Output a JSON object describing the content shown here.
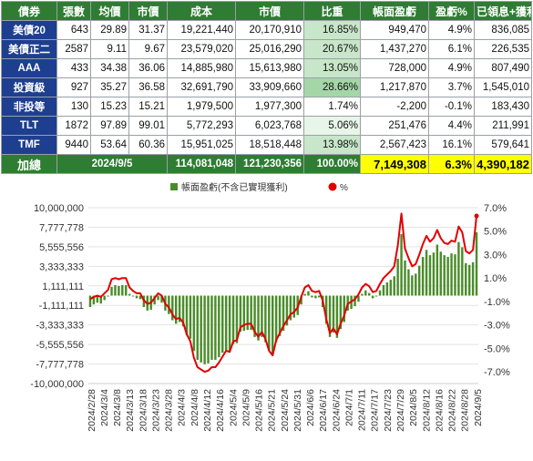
{
  "table": {
    "headers": [
      "債券",
      "張數",
      "均價",
      "市價",
      "成本",
      "市價",
      "比重",
      "帳面盈虧",
      "盈虧%",
      "已領息+獲利"
    ],
    "rows": [
      {
        "name": "美債20",
        "qty": "643",
        "avg": "29.89",
        "price": "31.37",
        "cost": "19,221,440",
        "value": "20,170,910",
        "weight": "16.85%",
        "pnl": "949,470",
        "pct": "4.9%",
        "income": "836,085"
      },
      {
        "name": "美債正二",
        "qty": "2587",
        "avg": "9.11",
        "price": "9.67",
        "cost": "23,579,020",
        "value": "25,016,290",
        "weight": "20.67%",
        "pnl": "1,437,270",
        "pct": "6.1%",
        "income": "226,535"
      },
      {
        "name": "AAA",
        "qty": "433",
        "avg": "34.38",
        "price": "36.06",
        "cost": "14,885,980",
        "value": "15,613,980",
        "weight": "13.05%",
        "pnl": "728,000",
        "pct": "4.9%",
        "income": "807,490"
      },
      {
        "name": "投資級",
        "qty": "927",
        "avg": "35.27",
        "price": "36.58",
        "cost": "32,691,790",
        "value": "33,909,660",
        "weight": "28.66%",
        "pnl": "1,217,870",
        "pct": "3.7%",
        "income": "1,545,010"
      },
      {
        "name": "非投等",
        "qty": "130",
        "avg": "15.23",
        "price": "15.21",
        "cost": "1,979,500",
        "value": "1,977,300",
        "weight": "1.74%",
        "pnl": "-2,200",
        "pct": "-0.1%",
        "income": "183,430"
      },
      {
        "name": "TLT",
        "qty": "1872",
        "avg": "97.89",
        "price": "99.01",
        "cost": "5,772,293",
        "value": "6,023,768",
        "weight": "5.06%",
        "pnl": "251,476",
        "pct": "4.4%",
        "income": "211,991"
      },
      {
        "name": "TMF",
        "qty": "9440",
        "avg": "53.64",
        "price": "60.36",
        "cost": "15,951,025",
        "value": "18,518,448",
        "weight": "13.98%",
        "pnl": "2,567,423",
        "pct": "16.1%",
        "income": "579,641"
      }
    ],
    "total": {
      "label": "加總",
      "date": "2024/9/5",
      "cost": "114,081,048",
      "value": "121,230,356",
      "weight": "100.00%",
      "pnl": "7,149,308",
      "pct": "6.3%",
      "income": "4,390,182"
    }
  },
  "chart_data": {
    "type": "bar",
    "legend": {
      "position": "top",
      "bar_label": "帳面盈虧(不含已實現獲利)",
      "line_label": "%"
    },
    "colors": {
      "bar": "#4a8c2a",
      "line": "#e00000"
    },
    "y_left": {
      "min": -10000000,
      "max": 10000000,
      "ticks": [
        "10,000,000",
        "7,777,778",
        "5,555,556",
        "3,333,333",
        "1,111,111",
        "-1,111,111",
        "-3,333,333",
        "-5,555,556",
        "-7,777,778",
        "-10,000,000"
      ]
    },
    "y_right": {
      "min": -8.0,
      "max": 7.0,
      "ticks": [
        "7.0%",
        "5.0%",
        "3.0%",
        "1.0%",
        "-1.0%",
        "-3.0%",
        "-5.0%",
        "-7.0%"
      ]
    },
    "x_labels": [
      "2024/2/28",
      "2024/3/4",
      "2024/3/8",
      "2024/3/13",
      "2024/3/18",
      "2024/3/23",
      "2024/3/28",
      "2024/4/3",
      "2024/4/8",
      "2024/4/12",
      "2024/4/16",
      "2024/5/4",
      "2024/5/9",
      "2024/5/16",
      "2024/5/21",
      "2024/5/24",
      "2024/5/31",
      "2024/6/6",
      "2024/6/17",
      "2024/6/24",
      "2024/7/1",
      "2024/7/11",
      "2024/7/17",
      "2024/7/23",
      "2024/7/29",
      "2024/8/5",
      "2024/8/12",
      "2024/8/16",
      "2024/8/22",
      "2024/8/28",
      "2024/9/5"
    ],
    "series": [
      {
        "name": "帳面盈虧(不含已實現獲利)",
        "type": "bar",
        "values": [
          -1300000,
          -1000000,
          -800000,
          -900000,
          -500000,
          -100000,
          1000000,
          1200000,
          1100000,
          1200000,
          1200000,
          200000,
          -100000,
          -300000,
          -400000,
          -1300000,
          -1700000,
          -1600000,
          -1000000,
          -500000,
          -800000,
          -1700000,
          -2100000,
          -2800000,
          -3200000,
          -3000000,
          -3500000,
          -4500000,
          -4900000,
          -6300000,
          -7300000,
          -7600000,
          -7800000,
          -7700000,
          -7300000,
          -7300000,
          -7000000,
          -6500000,
          -6200000,
          -6300000,
          -5500000,
          -5400000,
          -4100000,
          -4000000,
          -3900000,
          -3900000,
          -4700000,
          -5100000,
          -4700000,
          -5300000,
          -6200000,
          -6700000,
          -5300000,
          -4600000,
          -4000000,
          -3400000,
          -2800000,
          -2500000,
          -2200000,
          -1000000,
          200000,
          500000,
          -200000,
          -300000,
          -200000,
          -1300000,
          -3200000,
          -4700000,
          -4200000,
          -4800000,
          -3800000,
          -3000000,
          -1700000,
          -1500000,
          -1200000,
          -700000,
          200000,
          600000,
          300000,
          -300000,
          -100000,
          600000,
          1200000,
          1500000,
          1800000,
          2200000,
          4200000,
          7000000,
          4000000,
          3000000,
          2300000,
          2500000,
          3400000,
          4400000,
          5200000,
          4600000,
          4900000,
          5800000,
          5000000,
          4600000,
          4400000,
          4800000,
          4700000,
          6100000,
          5500000,
          3700000,
          3500000,
          3800000,
          7200000
        ]
      },
      {
        "name": "%",
        "type": "line",
        "values": [
          -0.8,
          -0.6,
          -0.5,
          -0.6,
          -0.3,
          0.0,
          0.9,
          1.0,
          0.9,
          1.0,
          1.0,
          0.2,
          -0.1,
          -0.3,
          -0.3,
          -0.9,
          -1.2,
          -1.1,
          -0.7,
          -0.3,
          -0.5,
          -1.2,
          -1.5,
          -2.1,
          -2.5,
          -2.4,
          -2.8,
          -3.8,
          -4.4,
          -5.8,
          -6.6,
          -6.8,
          -7.0,
          -6.9,
          -6.6,
          -6.6,
          -6.2,
          -5.7,
          -5.2,
          -5.3,
          -4.4,
          -4.3,
          -3.2,
          -3.0,
          -2.9,
          -2.9,
          -3.6,
          -4.0,
          -3.6,
          -4.2,
          -5.2,
          -5.6,
          -4.3,
          -3.7,
          -3.1,
          -2.6,
          -2.1,
          -1.9,
          -1.5,
          -0.6,
          0.2,
          0.4,
          -0.1,
          -0.2,
          -0.1,
          -0.9,
          -2.5,
          -3.7,
          -3.3,
          -3.8,
          -2.9,
          -2.2,
          -1.2,
          -1.0,
          -0.8,
          -0.4,
          0.2,
          0.5,
          0.3,
          -0.2,
          -0.1,
          0.5,
          1.0,
          1.3,
          1.6,
          2.0,
          3.8,
          6.5,
          3.5,
          2.7,
          2.0,
          2.2,
          3.0,
          3.9,
          4.6,
          4.1,
          4.4,
          5.1,
          4.4,
          4.0,
          3.9,
          4.2,
          4.1,
          5.4,
          4.9,
          3.3,
          3.1,
          3.4,
          6.3
        ]
      }
    ]
  }
}
